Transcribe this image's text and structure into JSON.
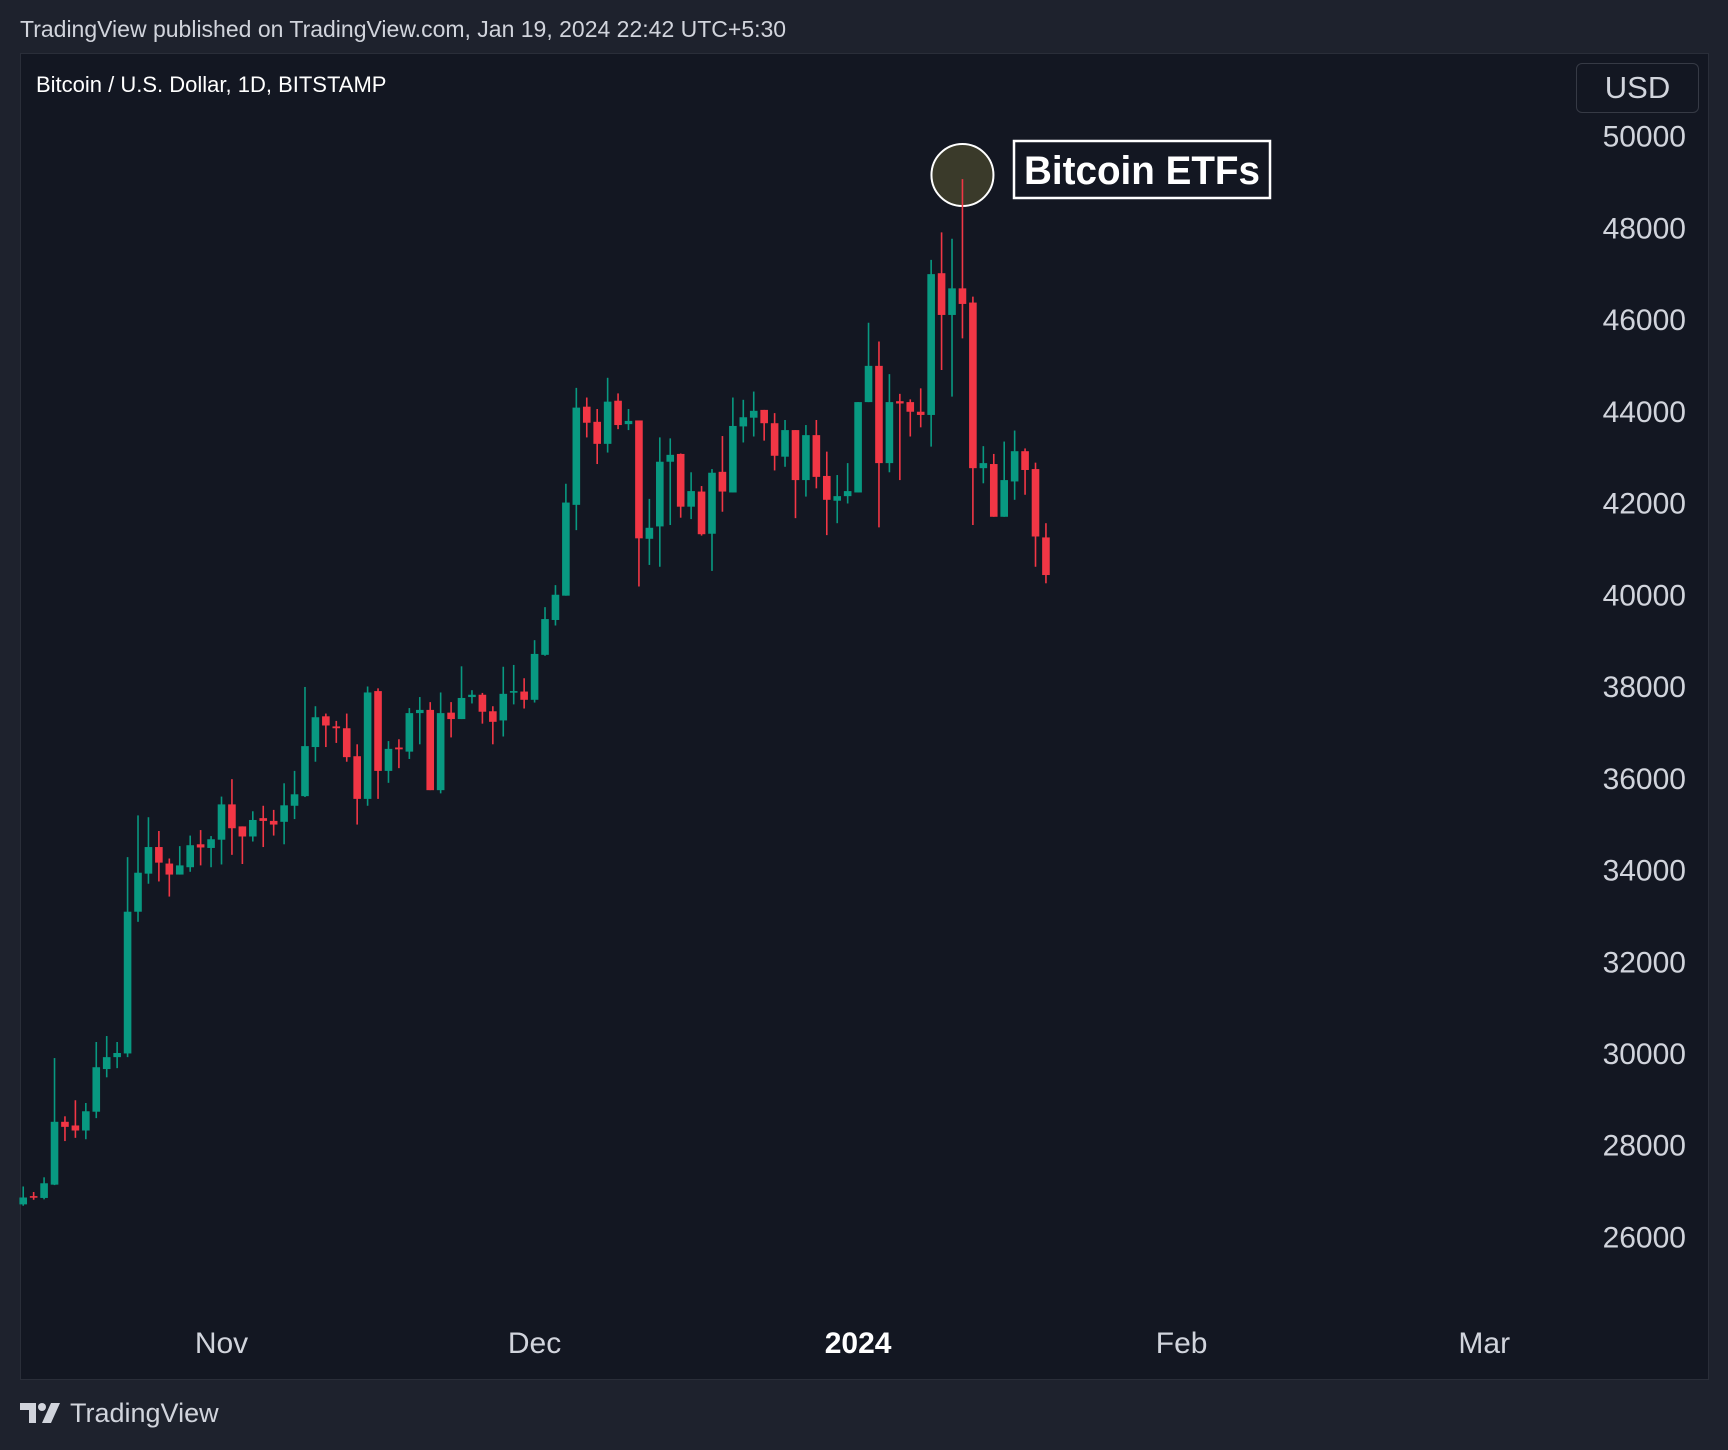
{
  "header": {
    "published": "TradingView published on TradingView.com, Jan 19, 2024 22:42 UTC+5:30"
  },
  "symbol": {
    "title": "Bitcoin / U.S. Dollar, 1D, BITSTAMP"
  },
  "currency_button": "USD",
  "footer": {
    "brand": "TradingView",
    "logo_icon": "tradingview-logo-icon"
  },
  "colors": {
    "up": "#089981",
    "down": "#f23645",
    "background": "#131722",
    "annotation_circle": "#3a3a2a"
  },
  "chart_data": {
    "type": "candlestick",
    "title": "Bitcoin / U.S. Dollar, 1D, BITSTAMP",
    "ylim": [
      24300,
      51750
    ],
    "xlim": [
      "2023-10-12",
      "2024-03-09"
    ],
    "grid": false,
    "y_ticks": [
      26000,
      28000,
      30000,
      32000,
      34000,
      36000,
      38000,
      40000,
      42000,
      44000,
      46000,
      48000,
      50000
    ],
    "x_ticks": [
      {
        "date": "2023-11-01",
        "label": "Nov",
        "bold": false
      },
      {
        "date": "2023-12-01",
        "label": "Dec",
        "bold": false
      },
      {
        "date": "2024-01-01",
        "label": "2024",
        "bold": true
      },
      {
        "date": "2024-02-01",
        "label": "Feb",
        "bold": false
      },
      {
        "date": "2024-03-01",
        "label": "Mar",
        "bold": false
      }
    ],
    "annotation": {
      "text": "Bitcoin ETFs",
      "date": "2024-01-11",
      "price": 49050
    },
    "columns": [
      "date",
      "open",
      "high",
      "low",
      "close"
    ],
    "candles": [
      [
        "2023-10-13",
        26700,
        27090,
        26670,
        26850
      ],
      [
        "2023-10-14",
        26880,
        26970,
        26800,
        26850
      ],
      [
        "2023-10-15",
        26840,
        27290,
        26810,
        27160
      ],
      [
        "2023-10-16",
        27130,
        29890,
        27120,
        28500
      ],
      [
        "2023-10-17",
        28500,
        28620,
        28080,
        28390
      ],
      [
        "2023-10-18",
        28420,
        28970,
        28150,
        28310
      ],
      [
        "2023-10-19",
        28310,
        28910,
        28120,
        28730
      ],
      [
        "2023-10-20",
        28720,
        30240,
        28580,
        29690
      ],
      [
        "2023-10-21",
        29650,
        30370,
        29470,
        29910
      ],
      [
        "2023-10-22",
        29910,
        30240,
        29670,
        30000
      ],
      [
        "2023-10-23",
        29990,
        34270,
        29910,
        33080
      ],
      [
        "2023-10-24",
        33080,
        35180,
        32860,
        33930
      ],
      [
        "2023-10-25",
        33910,
        35140,
        33690,
        34490
      ],
      [
        "2023-10-26",
        34490,
        34840,
        33740,
        34150
      ],
      [
        "2023-10-27",
        34130,
        34240,
        33410,
        33890
      ],
      [
        "2023-10-28",
        33890,
        34510,
        33890,
        34090
      ],
      [
        "2023-10-29",
        34050,
        34740,
        33950,
        34530
      ],
      [
        "2023-10-30",
        34550,
        34860,
        34090,
        34480
      ],
      [
        "2023-10-31",
        34470,
        34730,
        34050,
        34660
      ],
      [
        "2023-11-01",
        34650,
        35590,
        34110,
        35420
      ],
      [
        "2023-11-02",
        35420,
        35970,
        34320,
        34900
      ],
      [
        "2023-11-03",
        34940,
        34940,
        34120,
        34720
      ],
      [
        "2023-11-04",
        34720,
        35270,
        34610,
        35080
      ],
      [
        "2023-11-05",
        35120,
        35390,
        34490,
        35060
      ],
      [
        "2023-11-06",
        35060,
        35300,
        34740,
        34980
      ],
      [
        "2023-11-07",
        35040,
        35880,
        34550,
        35400
      ],
      [
        "2023-11-08",
        35390,
        36150,
        35100,
        35640
      ],
      [
        "2023-11-09",
        35600,
        37980,
        35580,
        36690
      ],
      [
        "2023-11-10",
        36670,
        37560,
        36350,
        37320
      ],
      [
        "2023-11-11",
        37340,
        37400,
        36670,
        37140
      ],
      [
        "2023-11-12",
        37120,
        37240,
        36760,
        37080
      ],
      [
        "2023-11-13",
        37080,
        37400,
        36350,
        36450
      ],
      [
        "2023-11-14",
        36470,
        36730,
        34980,
        35540
      ],
      [
        "2023-11-15",
        35540,
        37990,
        35390,
        37860
      ],
      [
        "2023-11-16",
        37890,
        37950,
        35540,
        36150
      ],
      [
        "2023-11-17",
        36150,
        36800,
        35890,
        36630
      ],
      [
        "2023-11-18",
        36660,
        36840,
        36210,
        36620
      ],
      [
        "2023-11-19",
        36570,
        37520,
        36410,
        37410
      ],
      [
        "2023-11-20",
        37410,
        37760,
        36730,
        37480
      ],
      [
        "2023-11-21",
        37480,
        37650,
        35730,
        35730
      ],
      [
        "2023-11-22",
        35730,
        37860,
        35660,
        37410
      ],
      [
        "2023-11-23",
        37420,
        37650,
        36880,
        37280
      ],
      [
        "2023-11-24",
        37280,
        38430,
        37280,
        37740
      ],
      [
        "2023-11-25",
        37760,
        37910,
        37620,
        37810
      ],
      [
        "2023-11-26",
        37810,
        37850,
        37180,
        37440
      ],
      [
        "2023-11-27",
        37450,
        37560,
        36730,
        37220
      ],
      [
        "2023-11-28",
        37250,
        38420,
        36900,
        37830
      ],
      [
        "2023-11-29",
        37860,
        38460,
        37600,
        37890
      ],
      [
        "2023-11-30",
        37880,
        38170,
        37510,
        37700
      ],
      [
        "2023-12-01",
        37700,
        39000,
        37640,
        38700
      ],
      [
        "2023-12-02",
        38680,
        39720,
        38660,
        39460
      ],
      [
        "2023-12-03",
        39440,
        40200,
        39320,
        39990
      ],
      [
        "2023-12-04",
        39970,
        42410,
        39970,
        42000
      ],
      [
        "2023-12-05",
        41950,
        44500,
        41400,
        44070
      ],
      [
        "2023-12-06",
        44090,
        44290,
        43420,
        43740
      ],
      [
        "2023-12-07",
        43760,
        44040,
        42840,
        43280
      ],
      [
        "2023-12-08",
        43280,
        44720,
        43090,
        44200
      ],
      [
        "2023-12-09",
        44220,
        44380,
        43600,
        43690
      ],
      [
        "2023-12-10",
        43710,
        44040,
        43580,
        43780
      ],
      [
        "2023-12-11",
        43790,
        43790,
        40170,
        41220
      ],
      [
        "2023-12-12",
        41210,
        42080,
        40640,
        41450
      ],
      [
        "2023-12-13",
        41480,
        43420,
        40600,
        42890
      ],
      [
        "2023-12-14",
        42890,
        43400,
        41510,
        43040
      ],
      [
        "2023-12-15",
        43060,
        43070,
        41670,
        41910
      ],
      [
        "2023-12-16",
        41910,
        42660,
        41640,
        42250
      ],
      [
        "2023-12-17",
        42240,
        42360,
        41280,
        41310
      ],
      [
        "2023-12-18",
        41320,
        42730,
        40510,
        42650
      ],
      [
        "2023-12-19",
        42670,
        43450,
        41800,
        42240
      ],
      [
        "2023-12-20",
        42220,
        44290,
        42220,
        43670
      ],
      [
        "2023-12-21",
        43660,
        44240,
        43310,
        43860
      ],
      [
        "2023-12-22",
        43850,
        44420,
        43440,
        44000
      ],
      [
        "2023-12-23",
        44020,
        44020,
        43350,
        43730
      ],
      [
        "2023-12-24",
        43730,
        43950,
        42700,
        43020
      ],
      [
        "2023-12-25",
        43000,
        43800,
        42780,
        43580
      ],
      [
        "2023-12-26",
        43580,
        43580,
        41660,
        42490
      ],
      [
        "2023-12-27",
        42490,
        43690,
        42130,
        43470
      ],
      [
        "2023-12-28",
        43470,
        43800,
        42310,
        42560
      ],
      [
        "2023-12-29",
        42580,
        43110,
        41290,
        42060
      ],
      [
        "2023-12-30",
        42040,
        42600,
        41550,
        42140
      ],
      [
        "2023-12-31",
        42140,
        42860,
        41980,
        42250
      ],
      [
        "2024-01-01",
        42220,
        44190,
        42220,
        44190
      ],
      [
        "2024-01-02",
        44190,
        45920,
        44190,
        44980
      ],
      [
        "2024-01-03",
        44980,
        45510,
        41460,
        42860
      ],
      [
        "2024-01-04",
        42860,
        44800,
        42660,
        44190
      ],
      [
        "2024-01-05",
        44210,
        44370,
        42490,
        44160
      ],
      [
        "2024-01-06",
        44190,
        44250,
        43440,
        43980
      ],
      [
        "2024-01-07",
        43980,
        44490,
        43640,
        43910
      ],
      [
        "2024-01-08",
        43910,
        47290,
        43220,
        46980
      ],
      [
        "2024-01-09",
        47000,
        47890,
        44890,
        46090
      ],
      [
        "2024-01-10",
        46090,
        47750,
        44310,
        46670
      ],
      [
        "2024-01-11",
        46670,
        49050,
        45580,
        46330
      ],
      [
        "2024-01-12",
        46360,
        46490,
        41510,
        42750
      ],
      [
        "2024-01-13",
        42750,
        43230,
        42420,
        42860
      ],
      [
        "2024-01-14",
        42840,
        43060,
        41690,
        41690
      ],
      [
        "2024-01-15",
        41690,
        43330,
        41690,
        42490
      ],
      [
        "2024-01-16",
        42460,
        43570,
        42060,
        43120
      ],
      [
        "2024-01-17",
        43120,
        43180,
        42170,
        42710
      ],
      [
        "2024-01-18",
        42730,
        42870,
        40600,
        41260
      ],
      [
        "2024-01-19",
        41240,
        41550,
        40240,
        40420
      ]
    ]
  }
}
